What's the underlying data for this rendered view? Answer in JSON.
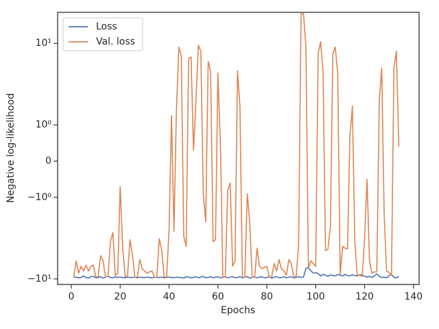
{
  "chart_data": {
    "type": "line",
    "xlabel": "Epochs",
    "ylabel": "Negative log-likelihood",
    "yscale": "symlog",
    "legend": "upper left",
    "x": [
      1,
      2,
      3,
      4,
      5,
      6,
      7,
      8,
      9,
      10,
      11,
      12,
      13,
      14,
      15,
      16,
      17,
      18,
      19,
      20,
      21,
      22,
      23,
      24,
      25,
      26,
      27,
      28,
      29,
      30,
      31,
      32,
      33,
      34,
      35,
      36,
      37,
      38,
      39,
      40,
      41,
      42,
      43,
      44,
      45,
      46,
      47,
      48,
      49,
      50,
      51,
      52,
      53,
      54,
      55,
      56,
      57,
      58,
      59,
      60,
      61,
      62,
      63,
      64,
      65,
      66,
      67,
      68,
      69,
      70,
      71,
      72,
      73,
      74,
      75,
      76,
      77,
      78,
      79,
      80,
      81,
      82,
      83,
      84,
      85,
      86,
      87,
      88,
      89,
      90,
      91,
      92,
      93,
      94,
      95,
      96,
      97,
      98,
      99,
      100,
      101,
      102,
      103,
      104,
      105,
      106,
      107,
      108,
      109,
      110,
      111,
      112,
      113,
      114,
      115,
      116,
      117,
      118,
      119,
      120,
      121,
      122,
      123,
      124,
      125,
      126,
      127,
      128,
      129,
      130,
      131,
      132,
      133,
      134
    ],
    "series": [
      {
        "name": "Loss",
        "color": "#4c72b0",
        "values": [
          -9.6,
          -9.5,
          -9.7,
          -9.6,
          -9.2,
          -9.6,
          -9.8,
          -9.4,
          -9.3,
          -9.7,
          -9.6,
          -9.4,
          -9.8,
          -9.5,
          -9.3,
          -9.6,
          -9.7,
          -9.4,
          -9.6,
          -9.5,
          -9.6,
          -9.7,
          -9.5,
          -9.6,
          -9.6,
          -9.5,
          -9.7,
          -9.5,
          -9.6,
          -9.6,
          -9.5,
          -9.6,
          -9.7,
          -9.5,
          -9.6,
          -9.6,
          -9.5,
          -9.7,
          -9.6,
          -9.5,
          -9.6,
          -9.7,
          -9.5,
          -9.6,
          -9.6,
          -9.8,
          -9.4,
          -9.5,
          -9.7,
          -9.6,
          -9.4,
          -9.7,
          -9.5,
          -9.3,
          -9.7,
          -9.6,
          -9.4,
          -9.7,
          -9.5,
          -9.4,
          -9.7,
          -9.6,
          -9.4,
          -9.7,
          -9.5,
          -9.4,
          -9.7,
          -9.6,
          -9.4,
          -9.7,
          -9.5,
          -9.4,
          -9.8,
          -9.6,
          -9.4,
          -9.7,
          -9.5,
          -9.4,
          -9.7,
          -9.6,
          -9.4,
          -9.8,
          -9.5,
          -9.4,
          -9.7,
          -9.6,
          -9.4,
          -9.7,
          -9.5,
          -9.4,
          -9.7,
          -9.6,
          -9.4,
          -9.6,
          -9.5,
          -7.4,
          -7.3,
          -7.9,
          -8.5,
          -8.4,
          -8.6,
          -9.2,
          -8.8,
          -9.0,
          -9.3,
          -8.9,
          -9.1,
          -9.2,
          -8.8,
          -9.0,
          -9.2,
          -8.8,
          -9.1,
          -9.2,
          -8.9,
          -9.1,
          -9.2,
          -8.9,
          -9.0,
          -9.3,
          -9.5,
          -9.3,
          -9.6,
          -9.2,
          -8.7,
          -9.3,
          -9.6,
          -9.5,
          -9.7,
          -9.2,
          -8.8,
          -9.6,
          -9.7,
          -9.3
        ]
      },
      {
        "name": "Val. loss",
        "color": "#dd8452",
        "values": [
          -9.5,
          -6.0,
          -8.5,
          -7,
          -8,
          -6.8,
          -8,
          -7,
          -6.8,
          -9.5,
          -9.3,
          -5.2,
          -6,
          -9.5,
          -9.3,
          -3.5,
          -2.7,
          -9,
          -8.5,
          -0.7,
          -4,
          -9.3,
          -9.3,
          -3.3,
          -5,
          -9.5,
          -9.5,
          -5.8,
          -7.5,
          -8,
          -8.5,
          -8.2,
          -8,
          -9.5,
          -9.5,
          -3.2,
          -4.5,
          -9.5,
          -9.5,
          -2.5,
          1.3,
          -2.6,
          1.5,
          9.0,
          7.0,
          -3.0,
          -4.0,
          6.5,
          6.8,
          0.3,
          2,
          9.5,
          8,
          -0.9,
          -2,
          6,
          4.5,
          -3.5,
          -3.3,
          4.3,
          0.5,
          -9.5,
          -9.5,
          -0.8,
          -0.6,
          -7,
          -6,
          4.6,
          1.7,
          -9.5,
          -9.5,
          -0.9,
          -2,
          -9.5,
          -9.5,
          -4.2,
          -7,
          -7.5,
          -7.2,
          -7,
          -9.5,
          -9.5,
          -6.5,
          -8,
          -5.8,
          -7.5,
          -8,
          -9,
          -5.8,
          -6.5,
          -9.3,
          -9.5,
          -3.8,
          23,
          23,
          9,
          -7.5,
          -6,
          -6.5,
          -7,
          7.5,
          10.5,
          4.5,
          -4.5,
          -4.3,
          -2.3,
          7.5,
          9.0,
          4.3,
          -9,
          -4.0,
          -4.2,
          -4.3,
          0.7,
          1.7,
          -3.5,
          -9,
          -9,
          -9.3,
          -3.2,
          -0.5,
          -6,
          -8.5,
          -8.2,
          -8.2,
          2,
          5,
          -1.6,
          -8,
          -8.3,
          -9,
          5.0,
          8.0,
          0.4
        ]
      }
    ],
    "xlim": [
      -5.6,
      142.3
    ],
    "xticks": [
      0,
      20,
      40,
      60,
      80,
      100,
      120,
      140
    ],
    "ylim": [
      -11.7,
      24
    ],
    "yticks": [
      {
        "value": -10,
        "label": "−10¹"
      },
      {
        "value": -1,
        "label": "−10⁰"
      },
      0,
      {
        "value": 1,
        "label": "10⁰"
      },
      {
        "value": 10,
        "label": "10¹"
      }
    ]
  }
}
